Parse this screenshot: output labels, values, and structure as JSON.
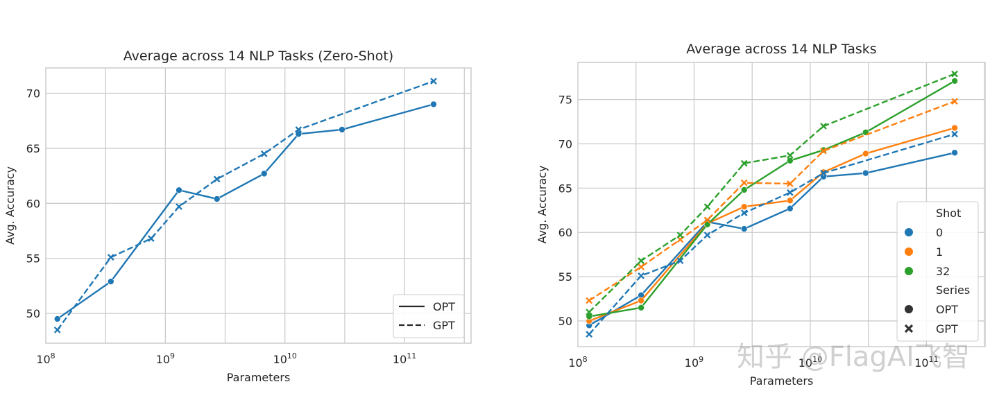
{
  "colors": {
    "0": "#1f77b4",
    "1": "#ff7f0e",
    "32": "#2ca02c",
    "grid": "#cccccc"
  },
  "watermark": "知乎 @FlagAI飞智",
  "chart_data": [
    {
      "type": "line",
      "title": "Average across 14 NLP Tasks (Zero-Shot)",
      "xlabel": "Parameters",
      "ylabel": "Avg. Accuracy",
      "xscale": "log",
      "xlim": [
        100000000.0,
        360000000000.0
      ],
      "ylim": [
        47.3,
        72.3
      ],
      "xticks": [
        {
          "v": 100000000.0,
          "base": "10",
          "exp": "8"
        },
        {
          "v": 1000000000.0,
          "base": "10",
          "exp": "9"
        },
        {
          "v": 10000000000.0,
          "base": "10",
          "exp": "10"
        },
        {
          "v": 100000000000.0,
          "base": "10",
          "exp": "11"
        }
      ],
      "yticks": [
        50,
        55,
        60,
        65,
        70
      ],
      "grid": true,
      "legend_placement": "lower-right",
      "legend": [
        {
          "label": "OPT",
          "style": "solid"
        },
        {
          "label": "GPT",
          "style": "dashed"
        }
      ],
      "series": [
        {
          "name": "OPT",
          "shot": "0",
          "style": "solid",
          "marker": "circle",
          "x": [
            125000000.0,
            350000000.0,
            1300000000.0,
            2700000000.0,
            6700000000.0,
            13000000000.0,
            30000000000.0,
            175000000000.0
          ],
          "y": [
            49.5,
            52.9,
            61.2,
            60.4,
            62.7,
            66.3,
            66.7,
            69.0
          ]
        },
        {
          "name": "GPT",
          "shot": "0",
          "style": "dashed",
          "marker": "x",
          "x": [
            125000000.0,
            350000000.0,
            760000000.0,
            1300000000.0,
            2700000000.0,
            6700000000.0,
            13000000000.0,
            175000000000.0
          ],
          "y": [
            48.5,
            55.1,
            56.8,
            59.7,
            62.2,
            64.5,
            66.7,
            71.1
          ]
        }
      ]
    },
    {
      "type": "line",
      "title": "Average across 14 NLP Tasks",
      "xlabel": "Parameters",
      "ylabel": "Avg. Accuracy",
      "xscale": "log",
      "xlim": [
        100000000.0,
        320000000000.0
      ],
      "ylim": [
        47.1,
        79.2
      ],
      "xticks": [
        {
          "v": 100000000.0,
          "base": "10",
          "exp": "8"
        },
        {
          "v": 1000000000.0,
          "base": "10",
          "exp": "9"
        },
        {
          "v": 10000000000.0,
          "base": "10",
          "exp": "10"
        },
        {
          "v": 100000000000.0,
          "base": "10",
          "exp": "11"
        }
      ],
      "yticks": [
        50,
        55,
        60,
        65,
        70,
        75
      ],
      "grid": true,
      "legend_placement": "lower-right",
      "legend": {
        "shot_title": "Shot",
        "shots": [
          "0",
          "1",
          "32"
        ],
        "series_title": "Series",
        "series": [
          {
            "label": "OPT",
            "marker": "circle"
          },
          {
            "label": "GPT",
            "marker": "x"
          }
        ]
      },
      "series": [
        {
          "name": "OPT",
          "shot": "0",
          "style": "solid",
          "marker": "circle",
          "x": [
            125000000.0,
            350000000.0,
            1300000000.0,
            2700000000.0,
            6700000000.0,
            13000000000.0,
            30000000000.0,
            175000000000.0
          ],
          "y": [
            49.5,
            52.9,
            61.2,
            60.4,
            62.7,
            66.3,
            66.7,
            69.0
          ]
        },
        {
          "name": "OPT",
          "shot": "1",
          "style": "solid",
          "marker": "circle",
          "x": [
            125000000.0,
            350000000.0,
            1300000000.0,
            2700000000.0,
            6700000000.0,
            13000000000.0,
            30000000000.0,
            175000000000.0
          ],
          "y": [
            50.0,
            52.3,
            61.0,
            62.9,
            63.6,
            66.8,
            68.9,
            71.8
          ]
        },
        {
          "name": "OPT",
          "shot": "32",
          "style": "solid",
          "marker": "circle",
          "x": [
            125000000.0,
            350000000.0,
            1300000000.0,
            2700000000.0,
            6700000000.0,
            13000000000.0,
            30000000000.0,
            175000000000.0
          ],
          "y": [
            50.5,
            51.5,
            60.9,
            64.8,
            68.1,
            69.3,
            71.3,
            77.1
          ]
        },
        {
          "name": "GPT",
          "shot": "0",
          "style": "dashed",
          "marker": "x",
          "x": [
            125000000.0,
            350000000.0,
            760000000.0,
            1300000000.0,
            2700000000.0,
            6700000000.0,
            13000000000.0,
            175000000000.0
          ],
          "y": [
            48.5,
            55.1,
            56.8,
            59.7,
            62.2,
            64.5,
            66.7,
            71.1
          ]
        },
        {
          "name": "GPT",
          "shot": "1",
          "style": "dashed",
          "marker": "x",
          "x": [
            125000000.0,
            350000000.0,
            760000000.0,
            1300000000.0,
            2700000000.0,
            6700000000.0,
            13000000000.0,
            175000000000.0
          ],
          "y": [
            52.3,
            56.1,
            59.2,
            61.4,
            65.6,
            65.5,
            69.2,
            74.8
          ]
        },
        {
          "name": "GPT",
          "shot": "32",
          "style": "dashed",
          "marker": "x",
          "x": [
            125000000.0,
            350000000.0,
            760000000.0,
            1300000000.0,
            2700000000.0,
            6700000000.0,
            13000000000.0,
            175000000000.0
          ],
          "y": [
            51.0,
            56.8,
            59.7,
            62.9,
            67.8,
            68.7,
            72.0,
            77.9
          ]
        }
      ]
    }
  ]
}
